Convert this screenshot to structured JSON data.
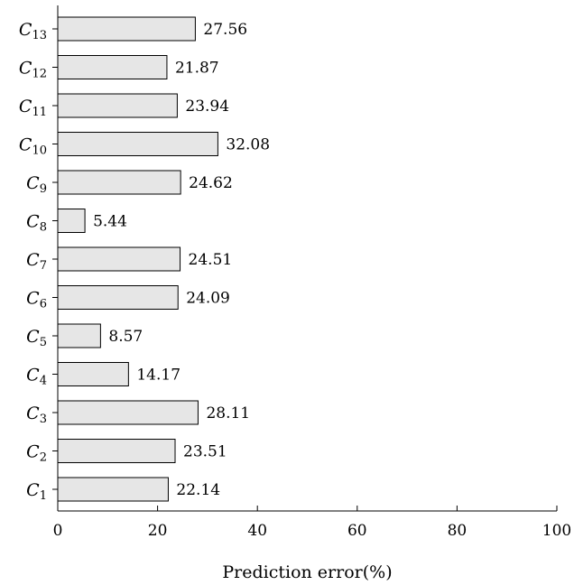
{
  "chart_data": {
    "type": "bar",
    "orientation": "horizontal",
    "categories": [
      {
        "base": "C",
        "sub": "1"
      },
      {
        "base": "C",
        "sub": "2"
      },
      {
        "base": "C",
        "sub": "3"
      },
      {
        "base": "C",
        "sub": "4"
      },
      {
        "base": "C",
        "sub": "5"
      },
      {
        "base": "C",
        "sub": "6"
      },
      {
        "base": "C",
        "sub": "7"
      },
      {
        "base": "C",
        "sub": "8"
      },
      {
        "base": "C",
        "sub": "9"
      },
      {
        "base": "C",
        "sub": "10"
      },
      {
        "base": "C",
        "sub": "11"
      },
      {
        "base": "C",
        "sub": "12"
      },
      {
        "base": "C",
        "sub": "13"
      }
    ],
    "values": [
      22.14,
      23.51,
      28.11,
      14.17,
      8.57,
      24.09,
      24.51,
      5.44,
      24.62,
      32.08,
      23.94,
      21.87,
      27.56
    ],
    "value_labels": [
      "22.14",
      "23.51",
      "28.11",
      "14.17",
      "8.57",
      "24.09",
      "24.51",
      "5.44",
      "24.62",
      "32.08",
      "23.94",
      "21.87",
      "27.56"
    ],
    "xlabel": "Prediction error(%)",
    "xlim": [
      0,
      100
    ],
    "xticks": [
      0,
      20,
      40,
      60,
      80,
      100
    ],
    "grid": false,
    "bar_color": "#e6e6e6",
    "bar_edge_color": "#000000"
  }
}
